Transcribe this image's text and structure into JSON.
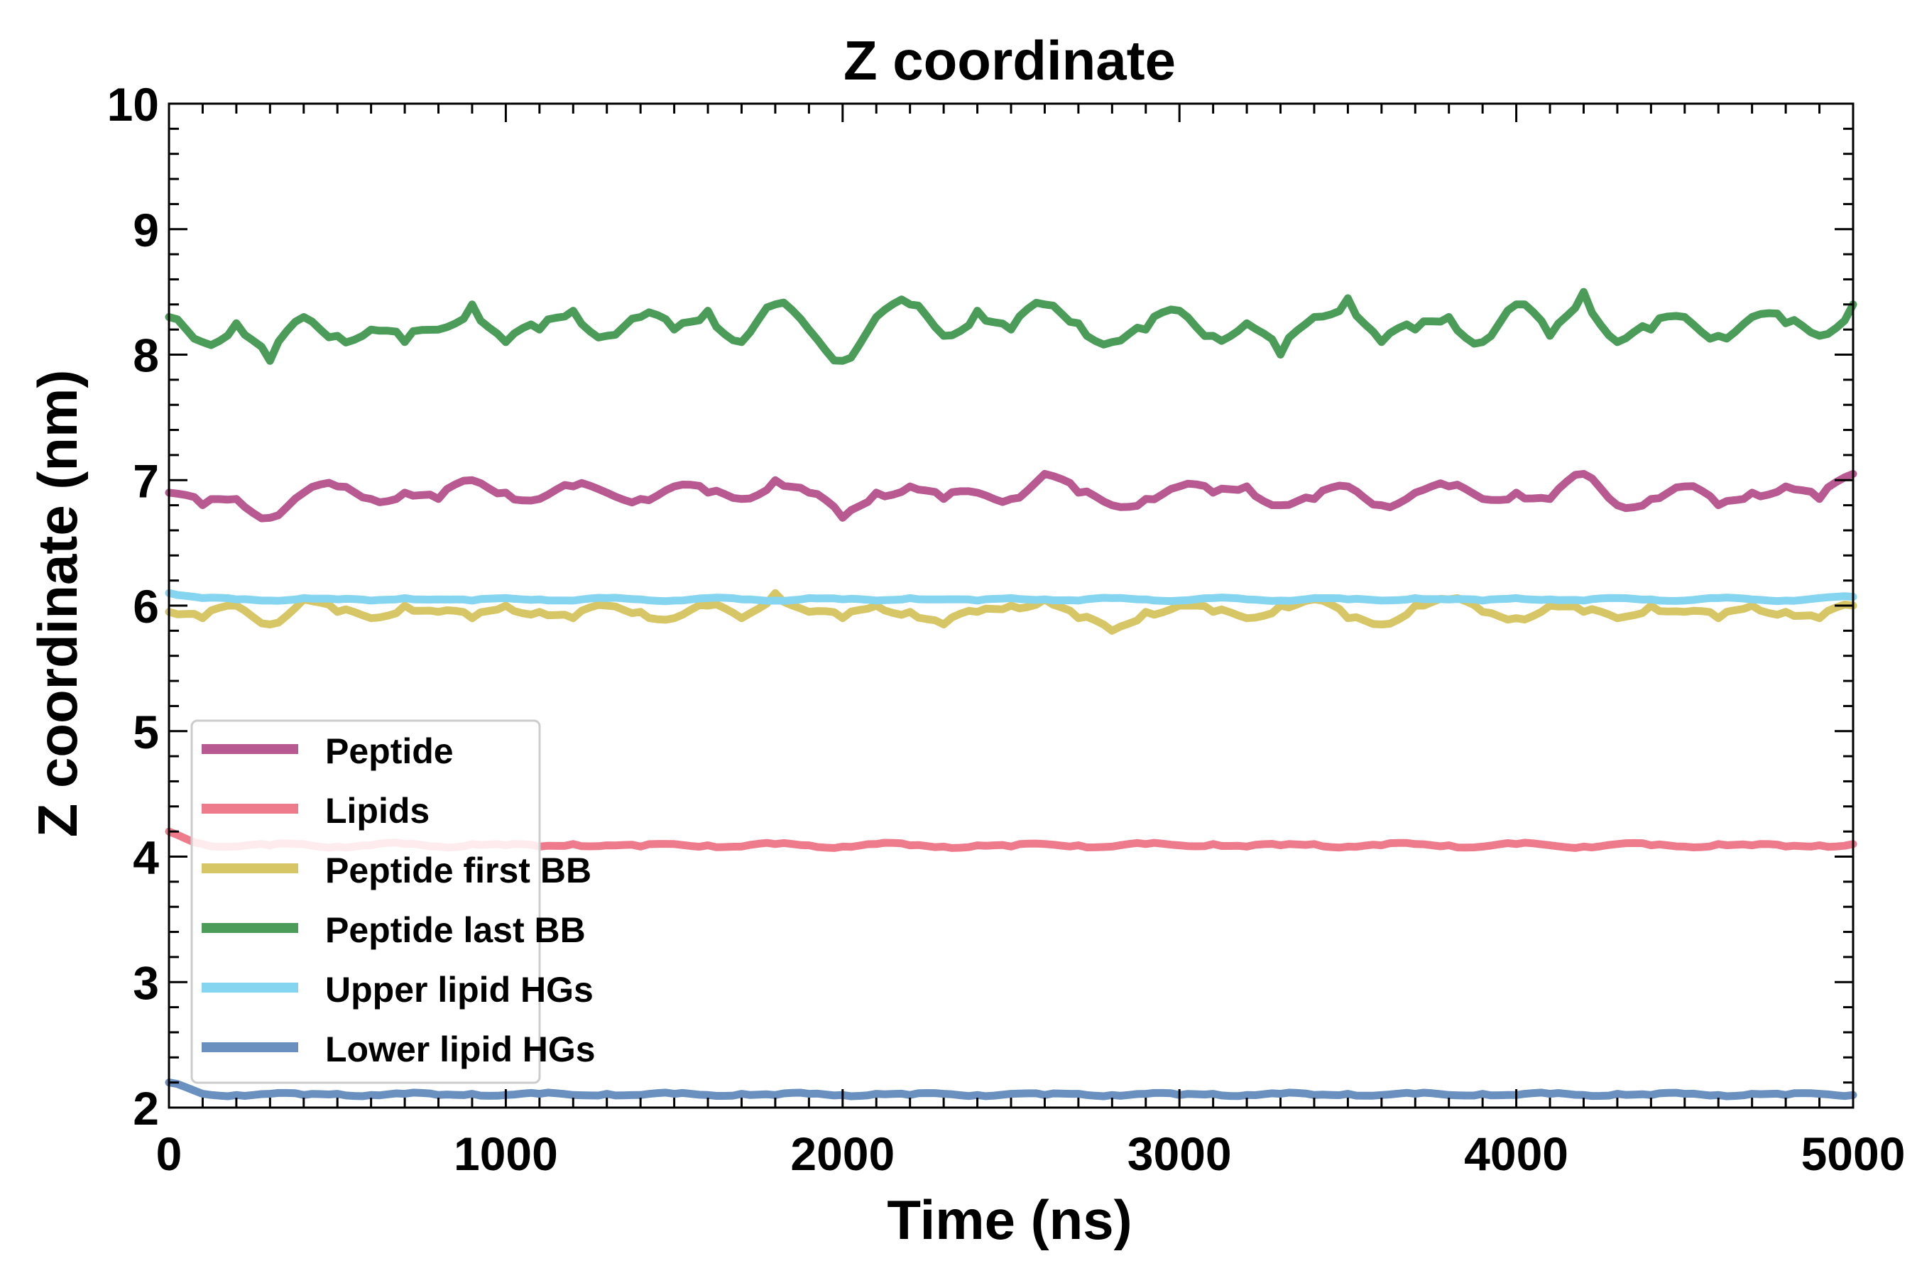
{
  "chart_data": {
    "type": "line",
    "title": "Z coordinate",
    "xlabel": "Time (ns)",
    "ylabel": "Z coordinate (nm)",
    "xlim": [
      0,
      5000
    ],
    "ylim": [
      2,
      10
    ],
    "x_ticks": [
      0,
      1000,
      2000,
      3000,
      4000,
      5000
    ],
    "x_tick_labels": [
      "0",
      "1000",
      "2000",
      "3000",
      "4000",
      "5000"
    ],
    "y_ticks": [
      2,
      3,
      4,
      5,
      6,
      7,
      8,
      9,
      10
    ],
    "y_tick_labels": [
      "2",
      "3",
      "4",
      "5",
      "6",
      "7",
      "8",
      "9",
      "10"
    ],
    "grid": false,
    "legend_position": "lower-left",
    "x": [
      0,
      100,
      200,
      300,
      400,
      500,
      600,
      700,
      800,
      900,
      1000,
      1100,
      1200,
      1300,
      1400,
      1500,
      1600,
      1700,
      1800,
      1900,
      2000,
      2100,
      2200,
      2300,
      2400,
      2500,
      2600,
      2700,
      2800,
      2900,
      3000,
      3100,
      3200,
      3300,
      3400,
      3500,
      3600,
      3700,
      3800,
      3900,
      4000,
      4100,
      4200,
      4300,
      4400,
      4500,
      4600,
      4700,
      4800,
      4900,
      5000
    ],
    "series": [
      {
        "name": "Peptide",
        "color": "#b85a91",
        "values": [
          6.9,
          6.8,
          6.85,
          6.7,
          6.9,
          6.95,
          6.85,
          6.9,
          6.85,
          7.0,
          6.9,
          6.85,
          6.95,
          6.9,
          6.85,
          6.95,
          6.9,
          6.85,
          7.0,
          6.9,
          6.7,
          6.9,
          6.95,
          6.85,
          6.9,
          6.85,
          7.05,
          6.9,
          6.8,
          6.85,
          6.95,
          6.9,
          6.95,
          6.8,
          6.85,
          6.95,
          6.8,
          6.9,
          6.95,
          6.85,
          6.9,
          6.85,
          7.05,
          6.8,
          6.85,
          6.95,
          6.8,
          6.9,
          6.95,
          6.85,
          7.05
        ]
      },
      {
        "name": "Lipids",
        "color": "#ee7b8c",
        "values": [
          4.2,
          4.1,
          4.08,
          4.09,
          4.1,
          4.08,
          4.09,
          4.1,
          4.08,
          4.1,
          4.09,
          4.08,
          4.1,
          4.09,
          4.08,
          4.1,
          4.09,
          4.08,
          4.1,
          4.09,
          4.08,
          4.1,
          4.09,
          4.08,
          4.09,
          4.08,
          4.1,
          4.09,
          4.08,
          4.1,
          4.09,
          4.1,
          4.08,
          4.09,
          4.1,
          4.08,
          4.09,
          4.1,
          4.09,
          4.08,
          4.1,
          4.09,
          4.08,
          4.1,
          4.09,
          4.08,
          4.1,
          4.09,
          4.08,
          4.09,
          4.1
        ]
      },
      {
        "name": "Peptide first BB",
        "color": "#d6c665",
        "values": [
          5.95,
          5.9,
          6.0,
          5.85,
          6.05,
          5.95,
          5.9,
          6.0,
          5.95,
          5.9,
          6.0,
          5.95,
          5.9,
          6.0,
          5.95,
          5.9,
          6.0,
          5.9,
          6.1,
          5.95,
          5.9,
          6.0,
          5.95,
          5.85,
          5.95,
          6.0,
          6.05,
          5.9,
          5.8,
          5.95,
          6.0,
          5.95,
          5.9,
          6.0,
          6.05,
          5.9,
          5.85,
          6.0,
          6.05,
          5.95,
          5.9,
          6.0,
          5.95,
          5.9,
          6.0,
          5.95,
          5.9,
          6.0,
          5.95,
          5.9,
          6.0
        ]
      },
      {
        "name": "Peptide last BB",
        "color": "#4a9c58",
        "values": [
          8.3,
          8.1,
          8.25,
          7.95,
          8.3,
          8.15,
          8.2,
          8.1,
          8.2,
          8.4,
          8.1,
          8.2,
          8.35,
          8.15,
          8.3,
          8.2,
          8.35,
          8.1,
          8.4,
          8.2,
          7.95,
          8.3,
          8.4,
          8.15,
          8.35,
          8.2,
          8.4,
          8.25,
          8.1,
          8.2,
          8.35,
          8.15,
          8.25,
          8.0,
          8.3,
          8.45,
          8.1,
          8.2,
          8.3,
          8.1,
          8.4,
          8.15,
          8.5,
          8.1,
          8.2,
          8.3,
          8.15,
          8.3,
          8.25,
          8.15,
          8.4
        ]
      },
      {
        "name": "Upper lipid HGs",
        "color": "#85d4f0",
        "values": [
          6.1,
          6.06,
          6.05,
          6.04,
          6.06,
          6.05,
          6.04,
          6.06,
          6.05,
          6.04,
          6.06,
          6.05,
          6.04,
          6.06,
          6.05,
          6.04,
          6.06,
          6.05,
          6.04,
          6.06,
          6.05,
          6.04,
          6.06,
          6.05,
          6.04,
          6.06,
          6.05,
          6.04,
          6.06,
          6.05,
          6.04,
          6.06,
          6.05,
          6.04,
          6.06,
          6.05,
          6.04,
          6.06,
          6.05,
          6.04,
          6.06,
          6.05,
          6.04,
          6.06,
          6.05,
          6.04,
          6.06,
          6.05,
          6.04,
          6.06,
          6.07
        ]
      },
      {
        "name": "Lower lipid HGs",
        "color": "#6990bf",
        "values": [
          2.2,
          2.11,
          2.1,
          2.11,
          2.1,
          2.11,
          2.1,
          2.11,
          2.1,
          2.11,
          2.1,
          2.11,
          2.1,
          2.11,
          2.1,
          2.11,
          2.1,
          2.11,
          2.1,
          2.11,
          2.1,
          2.11,
          2.1,
          2.11,
          2.1,
          2.11,
          2.1,
          2.11,
          2.1,
          2.11,
          2.1,
          2.11,
          2.1,
          2.11,
          2.1,
          2.11,
          2.1,
          2.11,
          2.1,
          2.11,
          2.1,
          2.11,
          2.1,
          2.11,
          2.1,
          2.11,
          2.1,
          2.11,
          2.1,
          2.11,
          2.1
        ]
      }
    ]
  }
}
